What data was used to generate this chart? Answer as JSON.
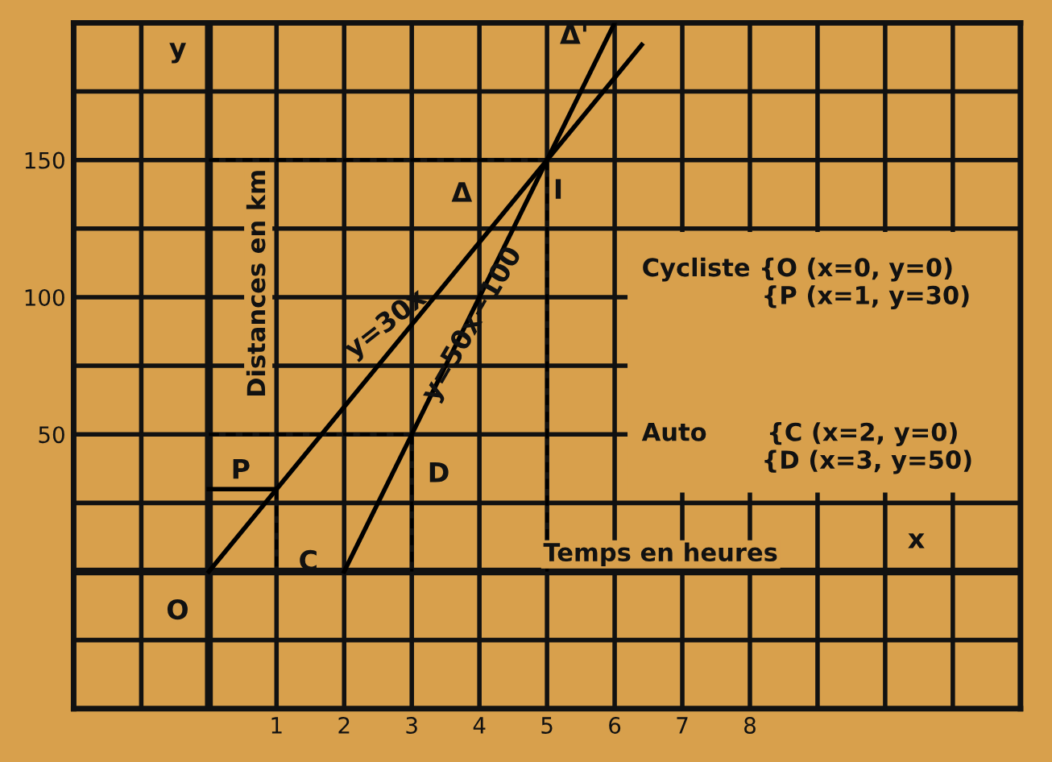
{
  "chart_data": {
    "type": "line",
    "xlabel": "Temps en heures",
    "ylabel": "Distances en km",
    "xlim": [
      -2,
      12
    ],
    "ylim": [
      -50,
      200
    ],
    "xticks": [
      {
        "value": -2,
        "label": null
      },
      {
        "value": -1,
        "label": null
      },
      {
        "value": 0,
        "label": null
      },
      1,
      2,
      3,
      4,
      5,
      6,
      7,
      8,
      {
        "value": 9,
        "label": null
      },
      {
        "value": 10,
        "label": null
      },
      {
        "value": 11,
        "label": null
      },
      {
        "value": 12,
        "label": null
      }
    ],
    "yticks": [
      {
        "value": -50,
        "label": null
      },
      {
        "value": -25,
        "label": null
      },
      {
        "value": 0,
        "label": null
      },
      {
        "value": 25,
        "label": null
      },
      50,
      {
        "value": 75,
        "label": null
      },
      100,
      {
        "value": 125,
        "label": null
      },
      150,
      {
        "value": 175,
        "label": null
      },
      {
        "value": 200,
        "label": null
      }
    ],
    "grid": true,
    "marker": "none",
    "series": [
      {
        "color": "#000000",
        "line_style": "solid",
        "x": [
          0,
          6.4
        ],
        "values": [
          0,
          192
        ]
      },
      {
        "color": "#000000",
        "line_style": "solid",
        "x": [
          2,
          6
        ],
        "values": [
          0,
          200
        ]
      },
      {
        "color": "#000000",
        "line_style": "dashed",
        "x": [
          0,
          5
        ],
        "values": [
          150,
          150
        ]
      },
      {
        "color": "#000000",
        "line_style": "dashed",
        "x": [
          5,
          5
        ],
        "values": [
          150,
          0
        ]
      },
      {
        "color": "#000000",
        "line_style": "dashed",
        "x": [
          0,
          3
        ],
        "values": [
          50,
          50
        ]
      },
      {
        "color": "#000000",
        "line_style": "dashed",
        "x": [
          3,
          3
        ],
        "values": [
          50,
          0
        ]
      },
      {
        "color": "#000000",
        "line_style": "solid",
        "x": [
          0,
          1
        ],
        "values": [
          30,
          30
        ]
      },
      {
        "color": "#000000",
        "line_style": "dashed",
        "x": [
          1,
          1
        ],
        "values": [
          30,
          0
        ]
      }
    ],
    "annotations": [
      {
        "text": "O",
        "x": 0,
        "y": 0
      },
      {
        "text": "P",
        "x": 1,
        "y": 30
      },
      {
        "text": "C",
        "x": 2,
        "y": 0
      },
      {
        "text": "D",
        "x": 3,
        "y": 50
      },
      {
        "text": "I",
        "x": 5,
        "y": 150
      },
      "Δ",
      {
        "text": "Δ'",
        "x": 5.8,
        "y": 195
      },
      "y=30x",
      {
        "text": "y=50x−100",
        "x": 3.9,
        "y": 90
      },
      "x",
      "y",
      "Cycliste {O (x=0, y=0)\n              {P (x=1, y=30)",
      "Auto       {C (x=2, y=0)\n              {D (x=3, y=50)"
    ]
  }
}
